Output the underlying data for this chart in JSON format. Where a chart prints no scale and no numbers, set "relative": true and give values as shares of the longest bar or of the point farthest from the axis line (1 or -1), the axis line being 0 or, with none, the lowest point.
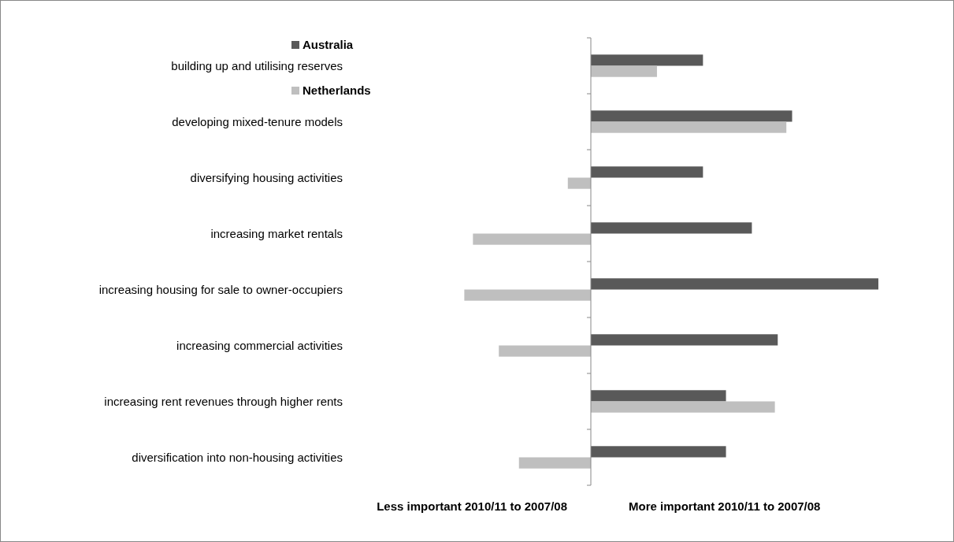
{
  "chart_data": {
    "type": "bar",
    "orientation": "horizontal",
    "relative": true,
    "categories": [
      "building up and utilising reserves",
      "developing mixed-tenure models",
      "diversifying housing activities",
      "increasing market rentals",
      "increasing housing for sale to owner-occupiers",
      "increasing commercial activities",
      "increasing rent revenues through higher rents",
      "diversification into non-housing activities"
    ],
    "series": [
      {
        "name": "Australia",
        "color": "#595959",
        "values": [
          0.39,
          0.7,
          0.39,
          0.56,
          1,
          0.65,
          0.47,
          0.47
        ]
      },
      {
        "name": "Netherlands",
        "color": "#bfbfbf",
        "values": [
          0.23,
          0.68,
          -0.08,
          -0.41,
          -0.44,
          -0.32,
          0.64,
          -0.25
        ]
      }
    ],
    "annotations": [
      "Less important 2010/11  to 2007/08",
      "More important  2010/11  to 2007/08"
    ],
    "legend": "top",
    "grid": false
  }
}
